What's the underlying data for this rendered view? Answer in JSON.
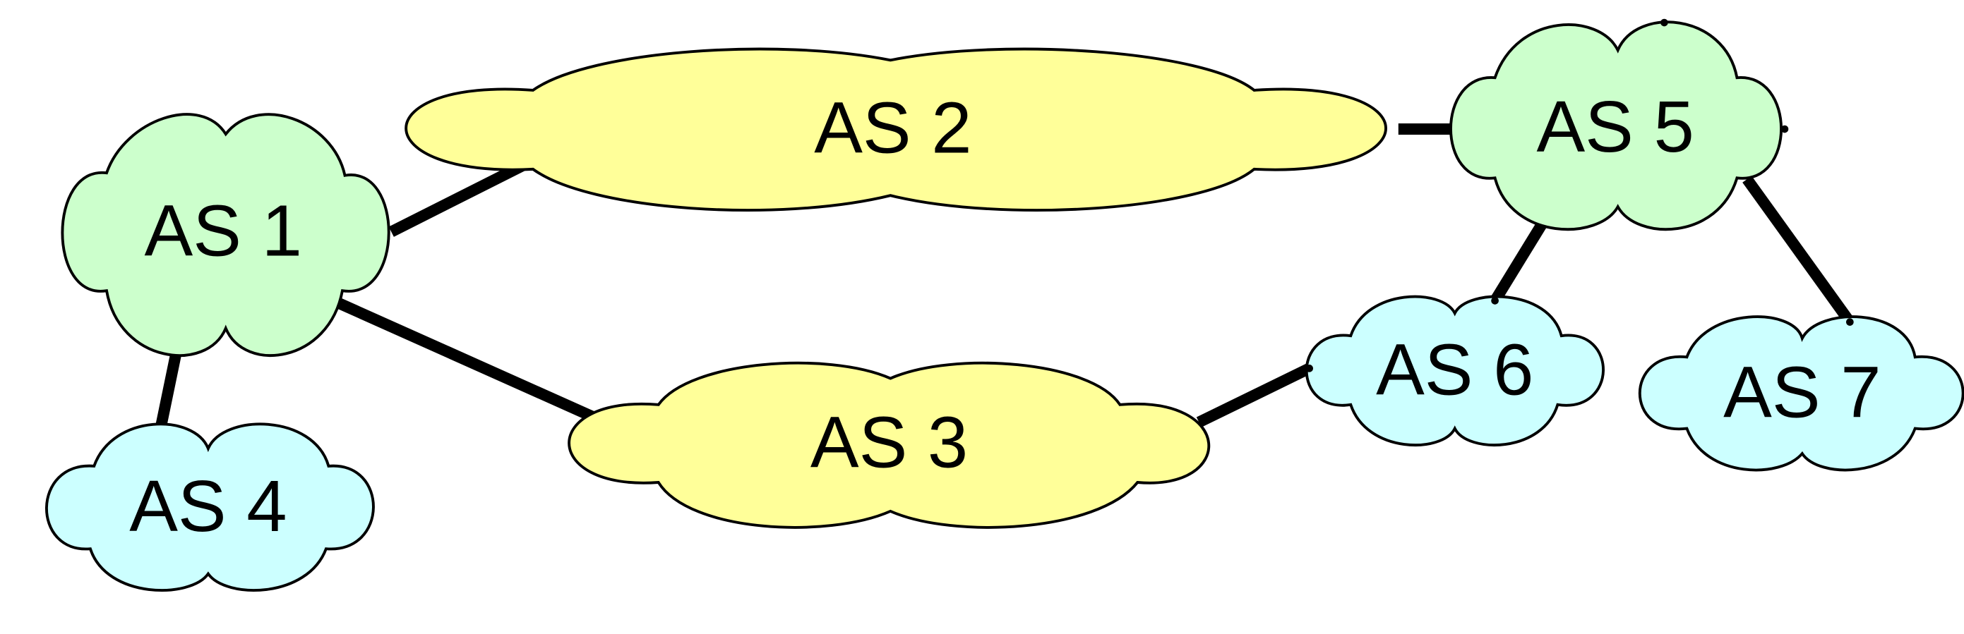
{
  "colors": {
    "green_cloud": "#ccffcc",
    "yellow_cloud": "#ffff99",
    "cyan_cloud": "#ccffff",
    "link": "#000000",
    "outline": "#000000"
  },
  "nodes": [
    {
      "id": "as1",
      "label": "AS 1",
      "fill": "green",
      "icon": "cloud-icon"
    },
    {
      "id": "as2",
      "label": "AS 2",
      "fill": "yellow",
      "icon": "cloud-icon"
    },
    {
      "id": "as3",
      "label": "AS 3",
      "fill": "yellow",
      "icon": "cloud-icon"
    },
    {
      "id": "as4",
      "label": "AS 4",
      "fill": "cyan",
      "icon": "cloud-icon"
    },
    {
      "id": "as5",
      "label": "AS 5",
      "fill": "green",
      "icon": "cloud-icon"
    },
    {
      "id": "as6",
      "label": "AS 6",
      "fill": "cyan",
      "icon": "cloud-icon"
    },
    {
      "id": "as7",
      "label": "AS 7",
      "fill": "cyan",
      "icon": "cloud-icon"
    }
  ],
  "links": [
    {
      "from": "AS 1",
      "to": "AS 2"
    },
    {
      "from": "AS 1",
      "to": "AS 3"
    },
    {
      "from": "AS 1",
      "to": "AS 4"
    },
    {
      "from": "AS 2",
      "to": "AS 5"
    },
    {
      "from": "AS 3",
      "to": "AS 6"
    },
    {
      "from": "AS 5",
      "to": "AS 6"
    },
    {
      "from": "AS 5",
      "to": "AS 7"
    }
  ]
}
